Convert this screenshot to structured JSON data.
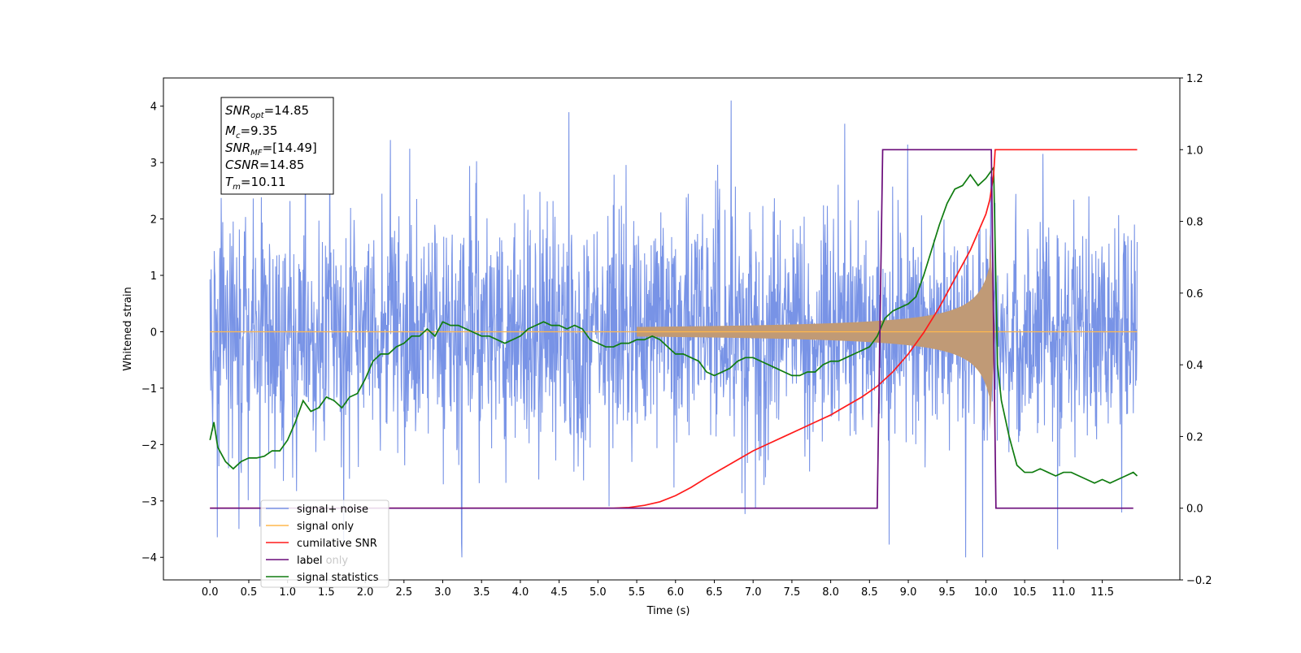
{
  "chart_data": {
    "type": "line",
    "xlabel": "Time (s)",
    "ylabel": "Whitened strain",
    "xlim": [
      -0.6,
      12.5
    ],
    "ylim": [
      -4.4,
      4.5
    ],
    "y2lim": [
      -0.2,
      1.2
    ],
    "grid": false,
    "legend_position": "lower-left",
    "x_ticks": [
      "0.0",
      "0.5",
      "1.0",
      "1.5",
      "2.0",
      "2.5",
      "3.0",
      "3.5",
      "4.0",
      "4.5",
      "5.0",
      "5.5",
      "6.0",
      "6.5",
      "7.0",
      "7.5",
      "8.0",
      "8.5",
      "9.0",
      "9.5",
      "10.0",
      "10.5",
      "11.0",
      "11.5"
    ],
    "y_ticks": [
      "4",
      "3",
      "2",
      "1",
      "0",
      "−1",
      "−2",
      "−3",
      "−4"
    ],
    "y_tick_values": [
      4,
      3,
      2,
      1,
      0,
      -1,
      -2,
      -3,
      -4
    ],
    "y2_ticks": [
      "1.2",
      "1.0",
      "0.8",
      "0.6",
      "0.4",
      "0.2",
      "0.0",
      "−0.2"
    ],
    "y2_tick_values": [
      1.2,
      1.0,
      0.8,
      0.6,
      0.4,
      0.2,
      0.0,
      -0.2
    ],
    "info_box": {
      "snr_opt": {
        "base": "SNR",
        "sub": "opt",
        "value": "=14.85"
      },
      "mc": {
        "base": "M",
        "sub": "c",
        "value": "=9.35"
      },
      "snr_mf": {
        "base": "SNR",
        "sub": "MF",
        "value": "=[14.49]"
      },
      "csnr": {
        "base": "CSNR",
        "value": "=14.85"
      },
      "tm": {
        "base": "T",
        "sub": "m",
        "value": "=10.11"
      }
    },
    "legend": {
      "signal_noise": "signal+ noise",
      "signal_only": "signal only",
      "cumulative_snr": "cumilative SNR",
      "label": "label",
      "label_only": "label only",
      "signal_statistics": "signal statistics"
    },
    "colors": {
      "signal_noise": "#7893e6",
      "signal_only": "#ffb84d",
      "signal_fill": "#c09a76",
      "cumulative_snr": "#ff1a1a",
      "label": "#6a0b7a",
      "signal_statistics": "#107c10"
    },
    "series": [
      {
        "name": "signal statistics",
        "axis": "right",
        "x": [
          0.0,
          0.05,
          0.1,
          0.2,
          0.3,
          0.4,
          0.5,
          0.6,
          0.7,
          0.8,
          0.9,
          1.0,
          1.1,
          1.2,
          1.3,
          1.4,
          1.5,
          1.6,
          1.7,
          1.8,
          1.9,
          2.0,
          2.1,
          2.2,
          2.3,
          2.4,
          2.5,
          2.6,
          2.7,
          2.8,
          2.9,
          3.0,
          3.1,
          3.2,
          3.3,
          3.4,
          3.5,
          3.6,
          3.7,
          3.8,
          3.9,
          4.0,
          4.1,
          4.2,
          4.3,
          4.4,
          4.5,
          4.6,
          4.7,
          4.8,
          4.9,
          5.0,
          5.1,
          5.2,
          5.3,
          5.4,
          5.5,
          5.6,
          5.7,
          5.8,
          5.9,
          6.0,
          6.1,
          6.2,
          6.3,
          6.4,
          6.5,
          6.6,
          6.7,
          6.8,
          6.9,
          7.0,
          7.1,
          7.2,
          7.3,
          7.4,
          7.5,
          7.6,
          7.7,
          7.8,
          7.9,
          8.0,
          8.1,
          8.2,
          8.3,
          8.4,
          8.5,
          8.6,
          8.7,
          8.8,
          8.9,
          9.0,
          9.1,
          9.2,
          9.3,
          9.4,
          9.5,
          9.6,
          9.7,
          9.8,
          9.9,
          10.0,
          10.1,
          10.15,
          10.2,
          10.3,
          10.4,
          10.5,
          10.6,
          10.7,
          10.8,
          10.9,
          11.0,
          11.1,
          11.2,
          11.3,
          11.4,
          11.5,
          11.6,
          11.7,
          11.8,
          11.9,
          11.95
        ],
        "values": [
          0.19,
          0.24,
          0.17,
          0.13,
          0.11,
          0.13,
          0.14,
          0.14,
          0.145,
          0.16,
          0.16,
          0.19,
          0.24,
          0.3,
          0.27,
          0.28,
          0.31,
          0.3,
          0.28,
          0.31,
          0.32,
          0.36,
          0.41,
          0.43,
          0.43,
          0.45,
          0.46,
          0.48,
          0.48,
          0.5,
          0.48,
          0.52,
          0.51,
          0.51,
          0.5,
          0.49,
          0.48,
          0.48,
          0.47,
          0.46,
          0.47,
          0.48,
          0.5,
          0.51,
          0.52,
          0.51,
          0.51,
          0.5,
          0.51,
          0.5,
          0.47,
          0.46,
          0.45,
          0.45,
          0.46,
          0.46,
          0.47,
          0.47,
          0.48,
          0.47,
          0.45,
          0.43,
          0.43,
          0.42,
          0.41,
          0.38,
          0.37,
          0.38,
          0.39,
          0.41,
          0.42,
          0.42,
          0.41,
          0.4,
          0.39,
          0.38,
          0.37,
          0.37,
          0.38,
          0.38,
          0.4,
          0.41,
          0.41,
          0.42,
          0.43,
          0.44,
          0.45,
          0.48,
          0.53,
          0.55,
          0.56,
          0.57,
          0.59,
          0.65,
          0.72,
          0.79,
          0.85,
          0.89,
          0.9,
          0.93,
          0.9,
          0.92,
          0.95,
          0.4,
          0.3,
          0.2,
          0.12,
          0.1,
          0.1,
          0.11,
          0.1,
          0.09,
          0.1,
          0.1,
          0.09,
          0.08,
          0.07,
          0.08,
          0.07,
          0.08,
          0.09,
          0.1,
          0.09
        ]
      },
      {
        "name": "cumilative SNR",
        "axis": "right",
        "x": [
          0.0,
          5.0,
          5.2,
          5.4,
          5.6,
          5.8,
          6.0,
          6.2,
          6.4,
          6.6,
          6.8,
          7.0,
          7.2,
          7.4,
          7.6,
          7.8,
          8.0,
          8.2,
          8.4,
          8.6,
          8.8,
          9.0,
          9.2,
          9.4,
          9.6,
          9.8,
          10.0,
          10.05,
          10.1,
          10.12,
          11.95
        ],
        "values": [
          0.0,
          0.0,
          0.0,
          0.002,
          0.008,
          0.018,
          0.035,
          0.058,
          0.085,
          0.11,
          0.135,
          0.16,
          0.18,
          0.2,
          0.22,
          0.24,
          0.26,
          0.285,
          0.31,
          0.34,
          0.38,
          0.43,
          0.49,
          0.56,
          0.64,
          0.72,
          0.82,
          0.86,
          0.93,
          1.0,
          1.0
        ]
      },
      {
        "name": "label",
        "axis": "right",
        "x": [
          0.0,
          8.6,
          8.67,
          10.07,
          10.13,
          11.9
        ],
        "values": [
          0.0,
          0.0,
          1.0,
          1.0,
          0.0,
          0.0
        ]
      }
    ]
  }
}
